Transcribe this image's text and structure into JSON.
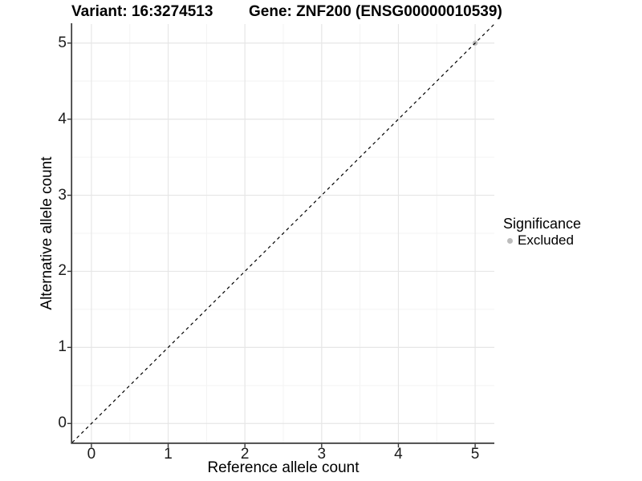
{
  "titles": {
    "variant": "Variant: 16:3274513",
    "gene": "Gene: ZNF200 (ENSG00000010539)"
  },
  "chart_data": {
    "type": "scatter",
    "title_left": "Variant: 16:3274513",
    "title_right": "Gene: ZNF200 (ENSG00000010539)",
    "xlabel": "Reference allele count",
    "ylabel": "Alternative allele count",
    "xlim": [
      -0.25,
      5.25
    ],
    "ylim": [
      -0.25,
      5.25
    ],
    "x_ticks": [
      0,
      1,
      2,
      3,
      4,
      5
    ],
    "y_ticks": [
      0,
      1,
      2,
      3,
      4,
      5
    ],
    "x_minor": [
      0.5,
      1.5,
      2.5,
      3.5,
      4.5
    ],
    "y_minor": [
      0.5,
      1.5,
      2.5,
      3.5,
      4.5
    ],
    "grid": true,
    "series": [
      {
        "name": "Excluded",
        "color": "#bcbcbc",
        "points": [
          {
            "x": 5,
            "y": 5
          }
        ]
      }
    ],
    "reference_line": {
      "type": "identity",
      "slope": 1,
      "intercept": 0,
      "style": "dashed",
      "color": "#000000"
    },
    "legend": {
      "title": "Significance",
      "position": "right",
      "items": [
        {
          "label": "Excluded",
          "color": "#bcbcbc"
        }
      ]
    }
  }
}
